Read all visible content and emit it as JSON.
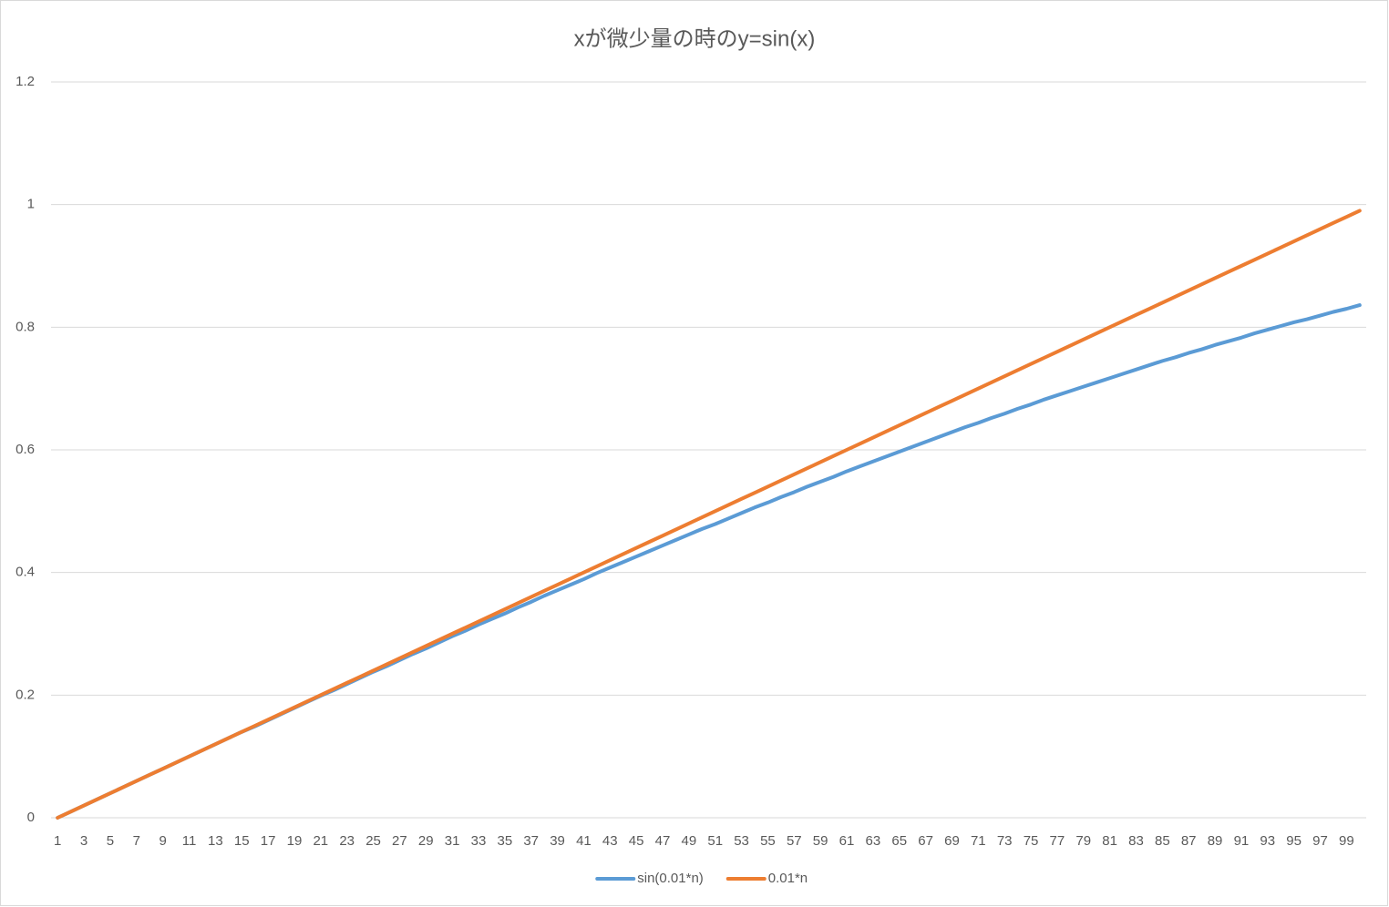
{
  "chart_data": {
    "type": "line",
    "title": "xが微少量の時のy=sin(x)",
    "categories": [
      1,
      null,
      3,
      null,
      5,
      null,
      7,
      null,
      9,
      null,
      11,
      null,
      13,
      null,
      15,
      null,
      17,
      null,
      19,
      null,
      21,
      null,
      23,
      null,
      25,
      null,
      27,
      null,
      29,
      null,
      31,
      null,
      33,
      null,
      35,
      null,
      37,
      null,
      39,
      null,
      41,
      null,
      43,
      null,
      45,
      null,
      47,
      null,
      49,
      null,
      51,
      null,
      53,
      null,
      55,
      null,
      57,
      null,
      59,
      null,
      61,
      null,
      63,
      null,
      65,
      null,
      67,
      null,
      69,
      null,
      71,
      null,
      73,
      null,
      75,
      null,
      77,
      null,
      79,
      null,
      81,
      null,
      83,
      null,
      85,
      null,
      87,
      null,
      89,
      null,
      91,
      null,
      93,
      null,
      95,
      null,
      97,
      null,
      99,
      null
    ],
    "series": [
      {
        "name": "sin(0.01*n)",
        "color": "#5b9bd5",
        "values": [
          0,
          0.01,
          0.02,
          0.03,
          0.04,
          0.05,
          0.06,
          0.07,
          0.08,
          0.09,
          0.1,
          0.11,
          0.12,
          0.13,
          0.14,
          0.149,
          0.159,
          0.169,
          0.179,
          0.189,
          0.199,
          0.208,
          0.218,
          0.228,
          0.238,
          0.247,
          0.257,
          0.267,
          0.276,
          0.286,
          0.296,
          0.305,
          0.315,
          0.324,
          0.333,
          0.343,
          0.352,
          0.362,
          0.371,
          0.38,
          0.389,
          0.399,
          0.408,
          0.417,
          0.426,
          0.435,
          0.444,
          0.453,
          0.462,
          0.471,
          0.479,
          0.488,
          0.497,
          0.506,
          0.514,
          0.523,
          0.531,
          0.54,
          0.548,
          0.556,
          0.565,
          0.573,
          0.581,
          0.589,
          0.597,
          0.605,
          0.613,
          0.621,
          0.629,
          0.637,
          0.644,
          0.652,
          0.659,
          0.667,
          0.674,
          0.682,
          0.689,
          0.696,
          0.703,
          0.71,
          0.717,
          0.724,
          0.731,
          0.738,
          0.745,
          0.751,
          0.758,
          0.764,
          0.771,
          0.777,
          0.783,
          0.79,
          0.796,
          0.802,
          0.808,
          0.813,
          0.819,
          0.825,
          0.83,
          0.836
        ]
      },
      {
        "name": "0.01*n",
        "color": "#ed7d31",
        "values": [
          0,
          0.01,
          0.02,
          0.03,
          0.04,
          0.05,
          0.06,
          0.07,
          0.08,
          0.09,
          0.1,
          0.11,
          0.12,
          0.13,
          0.14,
          0.15,
          0.16,
          0.17,
          0.18,
          0.19,
          0.2,
          0.21,
          0.22,
          0.23,
          0.24,
          0.25,
          0.26,
          0.27,
          0.28,
          0.29,
          0.3,
          0.31,
          0.32,
          0.33,
          0.34,
          0.35,
          0.36,
          0.37,
          0.38,
          0.39,
          0.4,
          0.41,
          0.42,
          0.43,
          0.44,
          0.45,
          0.46,
          0.47,
          0.48,
          0.49,
          0.5,
          0.51,
          0.52,
          0.53,
          0.54,
          0.55,
          0.56,
          0.57,
          0.58,
          0.59,
          0.6,
          0.61,
          0.62,
          0.63,
          0.64,
          0.65,
          0.66,
          0.67,
          0.68,
          0.69,
          0.7,
          0.71,
          0.72,
          0.73,
          0.74,
          0.75,
          0.76,
          0.77,
          0.78,
          0.79,
          0.8,
          0.81,
          0.82,
          0.83,
          0.84,
          0.85,
          0.86,
          0.87,
          0.88,
          0.89,
          0.9,
          0.91,
          0.92,
          0.93,
          0.94,
          0.95,
          0.96,
          0.97,
          0.98,
          0.99
        ]
      }
    ],
    "ylim": [
      0,
      1.2
    ],
    "yticks": [
      0,
      0.2,
      0.4,
      0.6,
      0.8,
      1,
      1.2
    ],
    "grid": true,
    "legend": "bottom"
  }
}
